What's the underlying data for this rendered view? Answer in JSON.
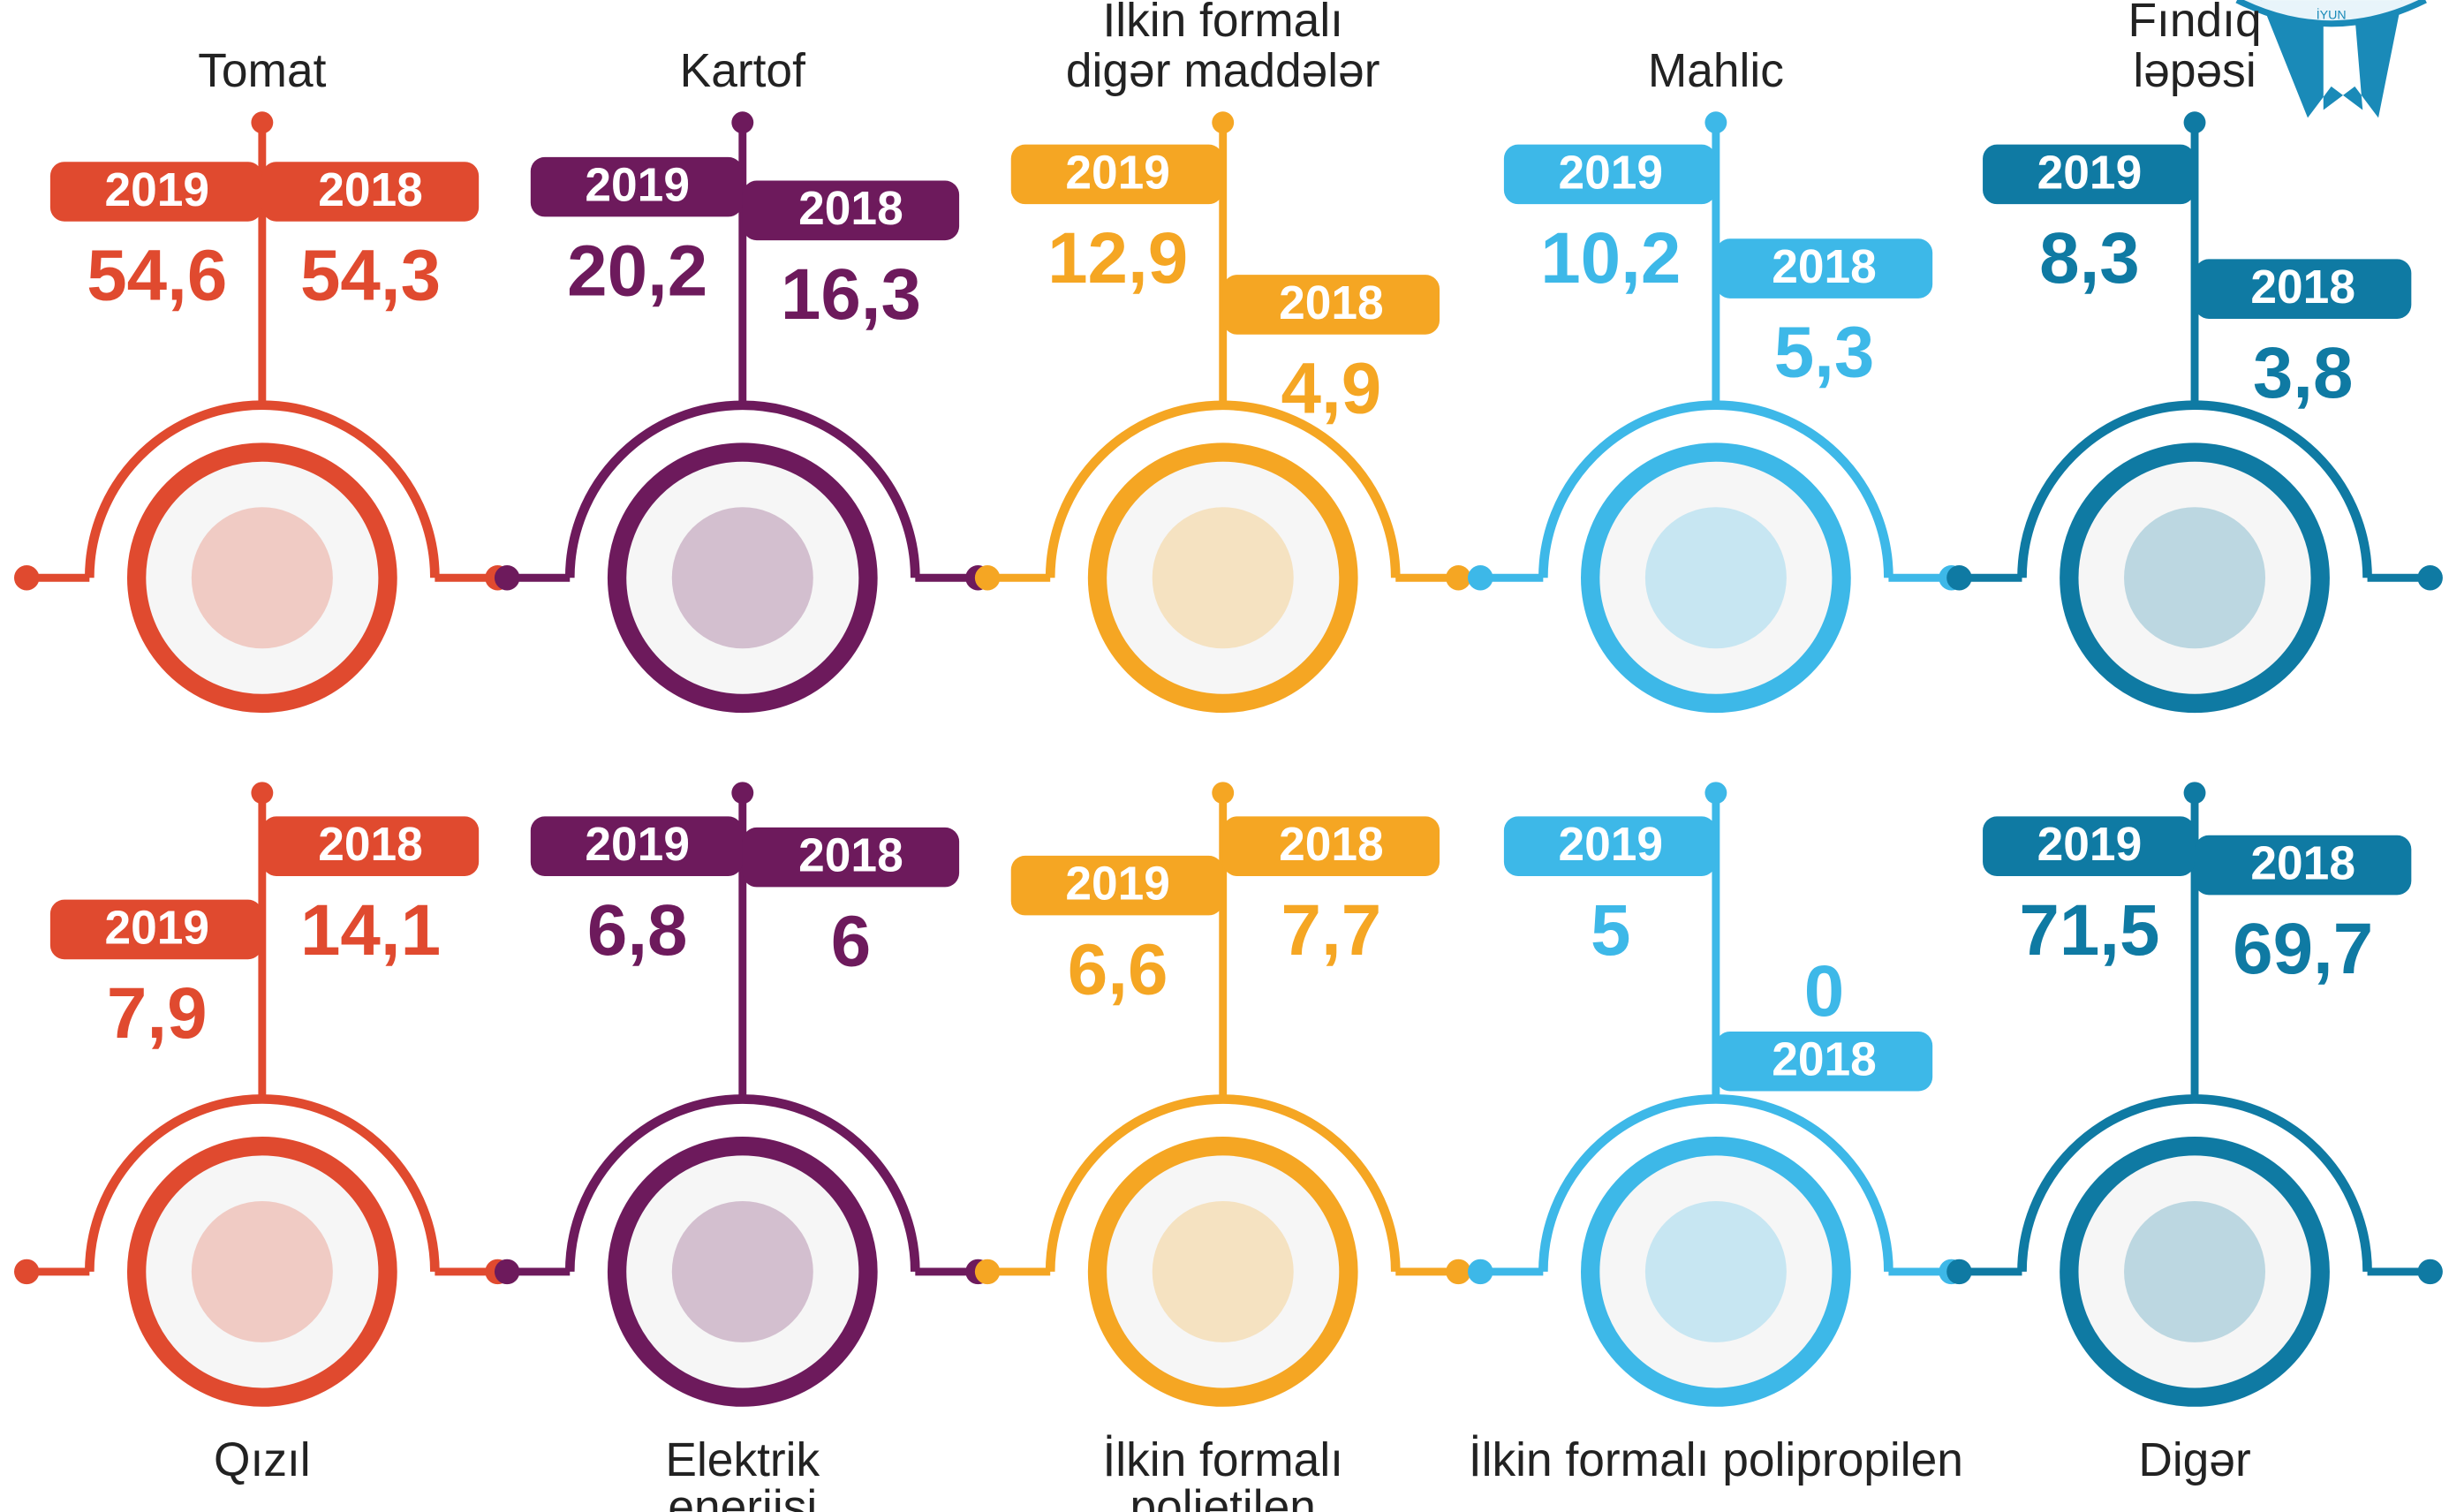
{
  "years": [
    "2019",
    "2018"
  ],
  "badge": "İYUN",
  "items": [
    {
      "name": [
        "Tomat"
      ],
      "color": "#e04a2f",
      "value_2019": "54,6",
      "value_2018": "54,3"
    },
    {
      "name": [
        "Kartof"
      ],
      "color": "#6d1a5c",
      "value_2019": "20,2",
      "value_2018": "16,3"
    },
    {
      "name": [
        "İlkin formalı",
        "digər maddələr"
      ],
      "color": "#f5a623",
      "value_2019": "12,9",
      "value_2018": "4,9"
    },
    {
      "name": [
        "Mahlic"
      ],
      "color": "#3db8e8",
      "value_2019": "10,2",
      "value_2018": "5,3"
    },
    {
      "name": [
        "Fındıq",
        "ləpəsi"
      ],
      "color": "#0f7aa3",
      "value_2019": "8,3",
      "value_2018": "3,8"
    },
    {
      "name": [
        "Qızıl"
      ],
      "color": "#e04a2f",
      "value_2019": "7,9",
      "value_2018": "14,1"
    },
    {
      "name": [
        "Elektrik",
        "enerjisi"
      ],
      "color": "#6d1a5c",
      "value_2019": "6,8",
      "value_2018": "6"
    },
    {
      "name": [
        "İlkin formalı",
        "polietilen"
      ],
      "color": "#f5a623",
      "value_2019": "6,6",
      "value_2018": "7,7"
    },
    {
      "name": [
        "İlkin formalı polipropilen"
      ],
      "color": "#3db8e8",
      "value_2019": "5",
      "value_2018": "0"
    },
    {
      "name": [
        "Digər"
      ],
      "color": "#0f7aa3",
      "value_2019": "71,5",
      "value_2018": "69,7"
    }
  ]
}
